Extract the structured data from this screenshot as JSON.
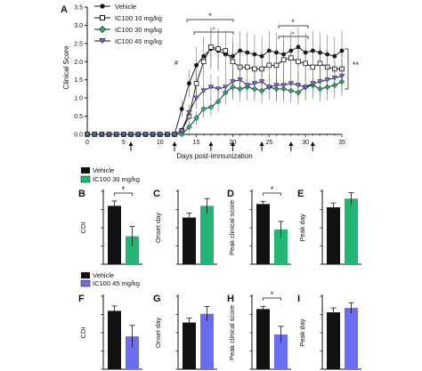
{
  "colors": {
    "vehicle": "#111111",
    "ic10": "#ffffff",
    "ic30": "#22b573",
    "ic45": "#6b6df0",
    "axis": "#111111"
  },
  "chart_data": [
    {
      "panel": "A",
      "type": "line",
      "xlabel": "Days post-immunization",
      "ylabel": "Clinical Score",
      "xlim": [
        0,
        35
      ],
      "ylim": [
        0,
        3.5
      ],
      "xticks": [
        "0",
        "5",
        "10",
        "15",
        "20",
        "25",
        "30",
        "35"
      ],
      "yticks": [
        "0.0",
        "0.5",
        "1.0",
        "1.5",
        "2.0",
        "2.5",
        "3.0",
        "3.5"
      ],
      "x": [
        0,
        1,
        2,
        3,
        4,
        5,
        6,
        7,
        8,
        9,
        10,
        11,
        12,
        13,
        14,
        15,
        16,
        17,
        18,
        19,
        20,
        21,
        22,
        23,
        24,
        25,
        26,
        27,
        28,
        29,
        30,
        31,
        32,
        33,
        34,
        35
      ],
      "series": [
        {
          "name": "Vehicle",
          "marker": "circle-filled",
          "values": [
            0,
            0,
            0,
            0,
            0,
            0,
            0,
            0,
            0,
            0,
            0,
            0,
            0,
            0.7,
            1.4,
            1.9,
            2.15,
            2.35,
            2.3,
            2.2,
            2.15,
            2.3,
            2.25,
            2.2,
            2.15,
            2.3,
            2.25,
            2.2,
            2.3,
            2.4,
            2.25,
            2.3,
            2.25,
            2.2,
            2.15,
            2.3
          ]
        },
        {
          "name": "IC100 10 mg/kg",
          "marker": "square-open",
          "values": [
            0,
            0,
            0,
            0,
            0,
            0,
            0,
            0,
            0,
            0,
            0,
            0,
            0,
            0.1,
            0.5,
            1.4,
            2.0,
            2.4,
            2.35,
            2.3,
            2.0,
            1.85,
            1.85,
            1.8,
            1.8,
            1.9,
            1.9,
            2.05,
            2.1,
            2.0,
            1.95,
            1.85,
            1.95,
            1.85,
            1.8,
            1.8
          ]
        },
        {
          "name": "IC100 30 mg/kg",
          "marker": "diamond-filled",
          "values": [
            0,
            0,
            0,
            0,
            0,
            0,
            0,
            0,
            0,
            0,
            0,
            0,
            0,
            0,
            0.2,
            0.45,
            0.7,
            0.75,
            0.9,
            1.15,
            1.3,
            1.25,
            1.3,
            1.25,
            1.2,
            1.3,
            1.25,
            1.25,
            1.2,
            1.15,
            1.3,
            1.35,
            1.25,
            1.3,
            1.35,
            1.45
          ]
        },
        {
          "name": "IC100 45 mg/kg",
          "marker": "triangle-down-filled",
          "values": [
            0,
            0,
            0,
            0,
            0,
            0,
            0,
            0,
            0,
            0,
            0,
            0,
            0,
            0.1,
            0.6,
            1.0,
            1.2,
            1.3,
            1.25,
            1.3,
            1.45,
            1.5,
            1.35,
            1.4,
            1.45,
            1.3,
            1.35,
            1.35,
            1.4,
            1.35,
            1.3,
            1.4,
            1.45,
            1.5,
            1.55,
            1.6
          ]
        }
      ],
      "arrow_days": [
        6,
        12,
        17,
        20,
        24,
        28,
        31
      ],
      "annotations": [
        "*",
        "^",
        "*",
        "^",
        "**",
        "#"
      ]
    },
    {
      "panel": "B",
      "type": "bar",
      "ylabel": "CDI",
      "ylim": [
        0,
        60
      ],
      "legend": [
        "Vehicle",
        "IC100 30 mg/kg"
      ],
      "categories": [
        "Vehicle",
        "IC100 30 mg/kg"
      ],
      "values": [
        48,
        23
      ],
      "errors": [
        4,
        8
      ],
      "significance": "*"
    },
    {
      "panel": "C",
      "type": "bar",
      "ylabel": "Onset day",
      "ylim": [
        0,
        25
      ],
      "categories": [
        "Vehicle",
        "IC100 30 mg/kg"
      ],
      "values": [
        16,
        20
      ],
      "errors": [
        1.5,
        2.5
      ]
    },
    {
      "panel": "D",
      "type": "bar",
      "ylabel": "Peak clinical score",
      "ylim": [
        0,
        4
      ],
      "categories": [
        "Vehicle",
        "IC100 30 mg/kg"
      ],
      "values": [
        3.3,
        1.9
      ],
      "errors": [
        0.15,
        0.45
      ],
      "significance": "*"
    },
    {
      "panel": "E",
      "type": "bar",
      "ylabel": "Peak day",
      "ylim": [
        0,
        25
      ],
      "categories": [
        "Vehicle",
        "IC100 30 mg/kg"
      ],
      "values": [
        19.5,
        22.5
      ],
      "errors": [
        1.5,
        2.0
      ]
    },
    {
      "panel": "F",
      "type": "bar",
      "ylabel": "CDI",
      "ylim": [
        0,
        60
      ],
      "legend": [
        "Vehicle",
        "IC100 45 mg/kg"
      ],
      "categories": [
        "Vehicle",
        "IC100 45 mg/kg"
      ],
      "values": [
        48,
        27
      ],
      "errors": [
        4,
        9
      ]
    },
    {
      "panel": "G",
      "type": "bar",
      "ylabel": "Onset day",
      "ylim": [
        0,
        25
      ],
      "categories": [
        "Vehicle",
        "IC100 45 mg/kg"
      ],
      "values": [
        16,
        19
      ],
      "errors": [
        1.5,
        2.5
      ]
    },
    {
      "panel": "H",
      "type": "bar",
      "ylabel": "Peak clinical score",
      "ylim": [
        0,
        4
      ],
      "categories": [
        "Vehicle",
        "IC100 45 mg/kg"
      ],
      "values": [
        3.3,
        1.9
      ],
      "errors": [
        0.15,
        0.45
      ],
      "significance": "*"
    },
    {
      "panel": "I",
      "type": "bar",
      "ylabel": "Peak day",
      "ylim": [
        0,
        25
      ],
      "categories": [
        "Vehicle",
        "IC100 45 mg/kg"
      ],
      "values": [
        19.5,
        21
      ],
      "errors": [
        1.5,
        1.8
      ]
    }
  ]
}
